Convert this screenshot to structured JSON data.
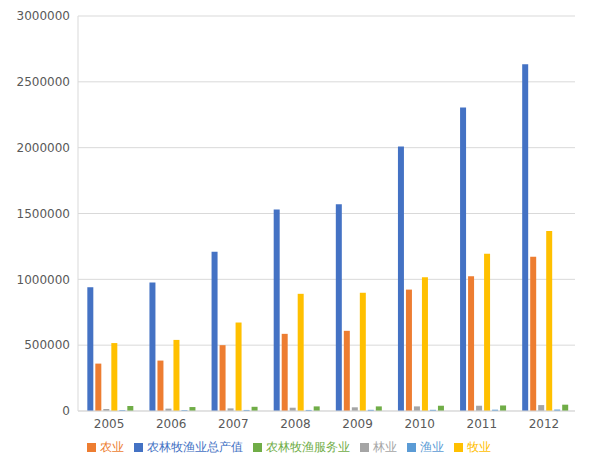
{
  "chart_data": {
    "type": "bar",
    "categories": [
      "2005",
      "2006",
      "2007",
      "2008",
      "2009",
      "2010",
      "2011",
      "2012"
    ],
    "series": [
      {
        "name": "农林牧渔业总产值",
        "color": "#4472c4",
        "values": [
          940000,
          976000,
          1210000,
          1530000,
          1570000,
          2008000,
          2305000,
          2633000
        ]
      },
      {
        "name": "农业",
        "color": "#ed7d31",
        "values": [
          360000,
          383000,
          500000,
          586000,
          609000,
          922000,
          1023000,
          1172000
        ]
      },
      {
        "name": "林业",
        "color": "#a5a5a5",
        "values": [
          15000,
          18000,
          20000,
          25000,
          28000,
          35000,
          40000,
          45000
        ]
      },
      {
        "name": "牧业",
        "color": "#ffc000",
        "values": [
          516000,
          540000,
          672000,
          890000,
          898000,
          1016000,
          1195000,
          1367000
        ]
      },
      {
        "name": "渔业",
        "color": "#5b9bd5",
        "values": [
          7000,
          7000,
          8000,
          8000,
          9000,
          9000,
          10000,
          11000
        ]
      },
      {
        "name": "农林牧渔服务业",
        "color": "#70ad47",
        "values": [
          38000,
          30000,
          32000,
          35000,
          35000,
          40000,
          42000,
          48000
        ]
      }
    ],
    "ylim": [
      0,
      3000000
    ],
    "yticks": [
      0,
      500000,
      1000000,
      1500000,
      2000000,
      2500000,
      3000000
    ],
    "grid": true,
    "legend": "bottom"
  }
}
